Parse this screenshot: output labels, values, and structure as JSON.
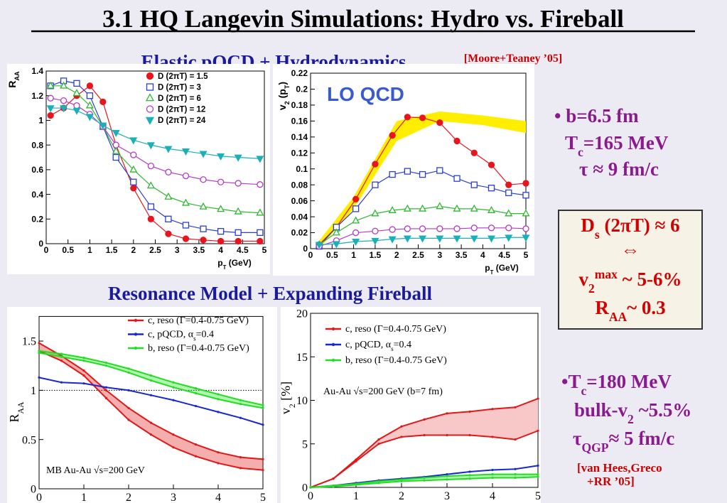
{
  "title": "3.1 HQ Langevin Simulations: Hydro vs. Fireball",
  "header_top": "Elastic pQCD + Hydrodynamics",
  "cite_top": "[Moore+Teaney ’05]",
  "header_bottom": "Resonance Model + Expanding Fireball",
  "notes_top": [
    "• b=6.5 fm",
    [
      "T",
      {
        "sub": "c"
      },
      "=165 MeV"
    ],
    "τ ≈ 9 fm/c"
  ],
  "box": [
    [
      "D",
      {
        "sub": "s"
      },
      " (2πT) ≈ 6"
    ],
    "⇔",
    [
      "v",
      {
        "sub": "2"
      },
      {
        "sup": "max"
      },
      " ~ 5-6%"
    ],
    [
      "R",
      {
        "sub": "AA"
      },
      "~ 0.3"
    ]
  ],
  "notes_bottom": [
    [
      "•T",
      {
        "sub": "c"
      },
      "=180 MeV"
    ],
    [
      "bulk-v",
      {
        "sub": "2"
      },
      " ~5.5%"
    ],
    [
      "τ",
      {
        "sub": "QGP"
      },
      "≈ 5 fm/c"
    ]
  ],
  "cite_bottom": [
    "[van Hees,Greco",
    "+RR ’05]"
  ],
  "chart_data": [
    {
      "type": "line",
      "xlabel": [
        "p",
        {
          "sub": "T"
        },
        " (GeV)"
      ],
      "ylabel": [
        "R",
        {
          "sub": "AA"
        }
      ],
      "xlim": [
        0,
        5
      ],
      "ylim": [
        0,
        1.4
      ],
      "xticks": [
        0,
        0.5,
        1,
        1.5,
        2,
        2.5,
        3,
        3.5,
        4,
        4.5,
        5
      ],
      "yticks": [
        0,
        0.2,
        0.4,
        0.6,
        0.8,
        1,
        1.2,
        1.4
      ],
      "x": [
        0.1,
        0.4,
        0.7,
        1.0,
        1.3,
        1.6,
        2.0,
        2.4,
        2.8,
        3.2,
        3.6,
        4.0,
        4.4,
        4.9
      ],
      "series": [
        {
          "name": "D (2πT) = 1.5",
          "color": "#e8141e",
          "marker": "circle",
          "filled": true,
          "values": [
            1.04,
            1.1,
            1.2,
            1.28,
            1.15,
            0.8,
            0.45,
            0.2,
            0.08,
            0.04,
            0.03,
            0.02,
            0.02,
            0.02
          ]
        },
        {
          "name": "D (2πT) = 3",
          "color": "#2b3fd6",
          "marker": "square",
          "filled": false,
          "values": [
            1.28,
            1.32,
            1.3,
            1.2,
            0.95,
            0.7,
            0.5,
            0.3,
            0.2,
            0.15,
            0.12,
            0.1,
            0.09,
            0.09
          ]
        },
        {
          "name": "D (2πT) = 6",
          "color": "#2fb82f",
          "marker": "triangle",
          "filled": false,
          "values": [
            1.28,
            1.28,
            1.22,
            1.12,
            0.95,
            0.75,
            0.6,
            0.47,
            0.38,
            0.33,
            0.3,
            0.28,
            0.26,
            0.25
          ]
        },
        {
          "name": "D (2πT) = 12",
          "color": "#b43cc8",
          "marker": "circle",
          "filled": false,
          "values": [
            1.18,
            1.16,
            1.12,
            1.05,
            0.95,
            0.8,
            0.72,
            0.63,
            0.58,
            0.55,
            0.52,
            0.5,
            0.49,
            0.48
          ]
        },
        {
          "name": "D (2πT) = 24",
          "color": "#1ab0b8",
          "marker": "triangle-down",
          "filled": true,
          "values": [
            1.1,
            1.1,
            1.08,
            1.03,
            0.96,
            0.9,
            0.84,
            0.8,
            0.77,
            0.75,
            0.73,
            0.71,
            0.7,
            0.69
          ]
        }
      ]
    },
    {
      "type": "line",
      "xlabel": [
        "p",
        {
          "sub": "T"
        },
        " (GeV)"
      ],
      "ylabel": [
        "v",
        {
          "sub": "2"
        },
        " (p",
        {
          "sub": "T"
        },
        ")"
      ],
      "annotation": "LO QCD",
      "xlim": [
        0,
        5
      ],
      "ylim": [
        0,
        0.22
      ],
      "xticks": [
        0,
        0.5,
        1,
        1.5,
        2,
        2.5,
        3,
        3.5,
        4,
        4.5,
        5
      ],
      "yticks": [
        0,
        0.02,
        0.04,
        0.06,
        0.08,
        0.1,
        0.12,
        0.14,
        0.16,
        0.18,
        0.2,
        0.22
      ],
      "band": {
        "color": "#ffee00",
        "x": [
          0.2,
          1,
          2,
          3,
          4,
          5
        ],
        "lower": [
          0,
          0.05,
          0.135,
          0.16,
          0.155,
          0.145
        ],
        "upper": [
          0.01,
          0.065,
          0.16,
          0.172,
          0.167,
          0.16
        ]
      },
      "x": [
        0.2,
        0.6,
        1.05,
        1.5,
        1.9,
        2.25,
        2.6,
        3,
        3.4,
        3.8,
        4.2,
        4.6,
        5
      ],
      "series": [
        {
          "color": "#e8141e",
          "marker": "circle",
          "filled": true,
          "values": [
            0.005,
            0.027,
            0.062,
            0.106,
            0.142,
            0.165,
            0.164,
            0.158,
            0.135,
            0.12,
            0.105,
            0.08,
            0.082
          ]
        },
        {
          "color": "#2b3fd6",
          "marker": "square",
          "filled": false,
          "values": [
            0.003,
            0.027,
            0.05,
            0.08,
            0.093,
            0.097,
            0.093,
            0.098,
            0.088,
            0.08,
            0.076,
            0.07,
            0.067
          ]
        },
        {
          "color": "#2fb82f",
          "marker": "triangle",
          "filled": false,
          "values": [
            0.005,
            0.02,
            0.035,
            0.044,
            0.048,
            0.05,
            0.05,
            0.053,
            0.05,
            0.05,
            0.048,
            0.044,
            0.044
          ]
        },
        {
          "color": "#b43cc8",
          "marker": "circle",
          "filled": false,
          "values": [
            0.003,
            0.01,
            0.02,
            0.022,
            0.024,
            0.025,
            0.025,
            0.025,
            0.025,
            0.026,
            0.026,
            0.026,
            0.025
          ]
        },
        {
          "color": "#1ab0b8",
          "marker": "triangle-down",
          "filled": true,
          "values": [
            0.005,
            0.006,
            0.009,
            0.01,
            0.012,
            0.013,
            0.013,
            0.013,
            0.013,
            0.013,
            0.013,
            0.014,
            0.014
          ]
        }
      ]
    },
    {
      "type": "line",
      "ylabel": [
        "R",
        {
          "sub": "AA"
        }
      ],
      "annotation": "MB Au-Au √s=200 GeV",
      "xlim": [
        0,
        5
      ],
      "ylim": [
        0,
        1.75
      ],
      "xticks": [
        0,
        1,
        2,
        3,
        4,
        5
      ],
      "yticks": [
        0,
        0.5,
        1,
        1.5
      ],
      "refline": 1,
      "x": [
        0,
        0.5,
        1,
        1.5,
        2,
        2.5,
        3,
        3.5,
        4,
        4.5,
        5
      ],
      "series": [
        {
          "name": "c, reso (Γ=0.4-0.75 GeV)",
          "color": "#e01818",
          "upper": [
            1.48,
            1.35,
            1.2,
            1.0,
            0.82,
            0.67,
            0.55,
            0.45,
            0.37,
            0.32,
            0.3
          ],
          "lower": [
            1.4,
            1.3,
            1.15,
            0.92,
            0.7,
            0.55,
            0.42,
            0.33,
            0.26,
            0.21,
            0.19
          ]
        },
        {
          "name": [
            "c, pQCD, α",
            {
              "sub": "s"
            },
            "=0.4"
          ],
          "color": "#1828d0",
          "values": [
            1.13,
            1.08,
            1.07,
            1.03,
            1.0,
            0.95,
            0.9,
            0.84,
            0.78,
            0.72,
            0.65
          ]
        },
        {
          "name": "b, reso (Γ=0.4-0.75 GeV)",
          "color": "#22dd22",
          "upper": [
            1.4,
            1.37,
            1.33,
            1.28,
            1.22,
            1.15,
            1.08,
            1.02,
            0.96,
            0.9,
            0.85
          ],
          "lower": [
            1.38,
            1.34,
            1.3,
            1.25,
            1.18,
            1.1,
            1.03,
            0.97,
            0.91,
            0.86,
            0.82
          ]
        }
      ]
    },
    {
      "type": "line",
      "ylabel": [
        "v",
        {
          "sub": "2"
        },
        " [%]"
      ],
      "annotation": "Au-Au √s=200 GeV (b=7 fm)",
      "xlim": [
        0,
        5
      ],
      "ylim": [
        0,
        20
      ],
      "xticks": [
        0,
        1,
        2,
        3,
        4,
        5
      ],
      "yticks": [
        0,
        5,
        10,
        15,
        20
      ],
      "x": [
        0,
        0.5,
        1,
        1.5,
        2,
        2.5,
        3,
        3.5,
        4,
        4.5,
        5
      ],
      "series": [
        {
          "name": "c, reso (Γ=0.4-0.75 GeV)",
          "color": "#e01818",
          "band_fill": "#f8c8c8",
          "upper": [
            0,
            1,
            3.2,
            5.5,
            7,
            7.8,
            8.5,
            8.7,
            9,
            9.2,
            10.2
          ],
          "lower": [
            0,
            1,
            3,
            5,
            5.8,
            6,
            6,
            6,
            5.8,
            5.5,
            6.5
          ]
        },
        {
          "name": [
            "c, pQCD, α",
            {
              "sub": "s"
            },
            "=0.4"
          ],
          "color": "#1828d0",
          "values": [
            0,
            0.2,
            0.5,
            0.8,
            1,
            1.2,
            1.5,
            1.8,
            2,
            2.1,
            2.5
          ]
        },
        {
          "name": "b, reso (Γ=0.4-0.75 GeV)",
          "color": "#22dd22",
          "upper": [
            0,
            0.2,
            0.4,
            0.7,
            0.9,
            1.1,
            1.3,
            1.4,
            1.5,
            1.5,
            1.5
          ],
          "lower": [
            0,
            0.1,
            0.3,
            0.5,
            0.7,
            0.8,
            0.9,
            1,
            1.1,
            1.1,
            1.2
          ]
        }
      ]
    }
  ]
}
